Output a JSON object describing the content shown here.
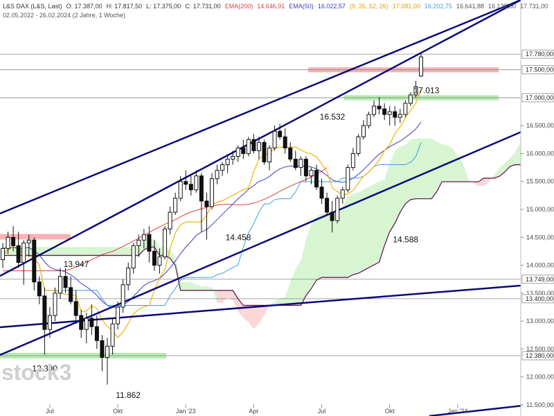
{
  "header": {
    "line1": [
      {
        "text": "L&S DAX (L&S, Last)",
        "color": "#333333"
      },
      {
        "text": "O: 17.387,00",
        "color": "#333333"
      },
      {
        "text": "H: 17.817,50",
        "color": "#333333"
      },
      {
        "text": "L: 17.375,00",
        "color": "#333333"
      },
      {
        "text": "C: 17.731,00",
        "color": "#333333"
      },
      {
        "text": "EMA(200)",
        "color": "#e04040"
      },
      {
        "text": "14.646,91",
        "color": "#e04040"
      },
      {
        "text": "EMA(50)",
        "color": "#3a3ad0"
      },
      {
        "text": "16.022,57",
        "color": "#3a3ad0"
      },
      {
        "text": "(9, 26, 52, 26)",
        "color": "#e0a000"
      },
      {
        "text": "17.081,00",
        "color": "#e0a000"
      },
      {
        "text": "16.202,75",
        "color": "#3aa0e0"
      },
      {
        "text": "16.641,88",
        "color": "#555555"
      },
      {
        "text": "16.138,50",
        "color": "#555555"
      },
      {
        "text": "17.731,00",
        "color": "#555555"
      }
    ],
    "line2": "02.05.2022 - 26.02.2024  (2 Jahre, 1 Woche)"
  },
  "watermark": "stock3",
  "colors": {
    "candle": "#111111",
    "ema200": "#e04040",
    "ema50": "#3a3ad0",
    "tenkan": "#f0b400",
    "kijun": "#3aa0e0",
    "senkou_b": "#6a1a5a",
    "cloud_green": "#d6f5d0",
    "cloud_red": "#fbd7d7",
    "trend": "#0a0a7a",
    "zone_green": "#b4ecb0",
    "zone_red": "#f5b4b4",
    "hline": "#888888"
  },
  "chart_data": {
    "type": "candlestick",
    "period": "02.05.2022 - 26.02.2024",
    "interval": "1 week",
    "y_axis": {
      "range": [
        11300,
        18750
      ],
      "ticks": [
        11500,
        12000,
        12500,
        13000,
        13500,
        14000,
        14500,
        15000,
        15500,
        16000,
        16500,
        17000,
        17500
      ],
      "tick_labels": [
        "11.500,00",
        "12.000,00",
        "12.500,00",
        "13.000,00",
        "13.500,00",
        "14.000,00",
        "14.500,00",
        "15.000,00",
        "15.500,00",
        "16.000,00",
        "16.500,00",
        "17.000,00",
        "17.500,00"
      ],
      "highlighted": [
        {
          "value": 17780,
          "label": "17.780,00"
        },
        {
          "value": 17500,
          "label": "17.500,00"
        },
        {
          "value": 17000,
          "label": "17.000,00"
        },
        {
          "value": 13749,
          "label": "13.749,00"
        },
        {
          "value": 13400,
          "label": "13.400,00"
        },
        {
          "value": 12380,
          "label": "12.380,00"
        }
      ]
    },
    "x_axis": {
      "labels": [
        {
          "week": 9,
          "label": "Jul"
        },
        {
          "week": 22,
          "label": "Okt"
        },
        {
          "week": 35,
          "label": "Jan '23"
        },
        {
          "week": 48,
          "label": "Apr"
        },
        {
          "week": 61,
          "label": "Jul"
        },
        {
          "week": 74,
          "label": "Okt"
        },
        {
          "week": 87,
          "label": "Jan '24"
        }
      ]
    },
    "candles": {
      "fields": [
        "o",
        "h",
        "l",
        "c"
      ],
      "values": [
        [
          14100,
          14400,
          13950,
          14300
        ],
        [
          14300,
          14600,
          14200,
          14500
        ],
        [
          14500,
          14700,
          14250,
          14350
        ],
        [
          14350,
          14600,
          13950,
          14050
        ],
        [
          14050,
          14450,
          13650,
          14400
        ],
        [
          14400,
          14550,
          14150,
          14450
        ],
        [
          14450,
          14500,
          13550,
          13700
        ],
        [
          13700,
          13800,
          13300,
          13450
        ],
        [
          13450,
          13600,
          12400,
          12850
        ],
        [
          12850,
          13250,
          12700,
          13100
        ],
        [
          13100,
          13600,
          13000,
          13500
        ],
        [
          13500,
          13950,
          13400,
          13800
        ],
        [
          13800,
          13950,
          13500,
          13600
        ],
        [
          13600,
          13800,
          13300,
          13350
        ],
        [
          13350,
          13550,
          12950,
          13100
        ],
        [
          13100,
          13200,
          12700,
          12850
        ],
        [
          12850,
          13150,
          12600,
          13050
        ],
        [
          13050,
          13300,
          12750,
          12900
        ],
        [
          12900,
          13100,
          12500,
          12650
        ],
        [
          12650,
          12750,
          12100,
          12350
        ],
        [
          12350,
          12700,
          11862,
          12550
        ],
        [
          12550,
          13050,
          12400,
          12950
        ],
        [
          12950,
          13350,
          12850,
          13250
        ],
        [
          13250,
          13750,
          13150,
          13650
        ],
        [
          13650,
          14050,
          13550,
          13950
        ],
        [
          13950,
          14400,
          13850,
          14350
        ],
        [
          14350,
          14550,
          14150,
          14450
        ],
        [
          14450,
          14650,
          14300,
          14550
        ],
        [
          14550,
          14700,
          14050,
          14250
        ],
        [
          14250,
          14450,
          13900,
          14000
        ],
        [
          14000,
          14300,
          13850,
          14150
        ],
        [
          14150,
          14700,
          14100,
          14650
        ],
        [
          14650,
          15050,
          14550,
          14950
        ],
        [
          14950,
          15300,
          14900,
          15200
        ],
        [
          15200,
          15600,
          15150,
          15500
        ],
        [
          15500,
          15700,
          15350,
          15450
        ],
        [
          15450,
          15600,
          15250,
          15350
        ],
        [
          15350,
          15700,
          15300,
          15600
        ],
        [
          15600,
          15650,
          14600,
          15150
        ],
        [
          15150,
          15300,
          14458,
          15050
        ],
        [
          15050,
          15650,
          15000,
          15550
        ],
        [
          15550,
          15800,
          15450,
          15700
        ],
        [
          15700,
          15850,
          15600,
          15800
        ],
        [
          15800,
          15950,
          15650,
          15900
        ],
        [
          15900,
          16050,
          15800,
          15950
        ],
        [
          15950,
          16150,
          15850,
          16100
        ],
        [
          16100,
          16250,
          15900,
          16000
        ],
        [
          16000,
          16300,
          15950,
          16250
        ],
        [
          16250,
          16350,
          16000,
          16050
        ],
        [
          16050,
          16300,
          15900,
          16200
        ],
        [
          16200,
          16250,
          15800,
          15850
        ],
        [
          15850,
          16150,
          15700,
          16100
        ],
        [
          16100,
          16500,
          16050,
          16400
        ],
        [
          16400,
          16532,
          16250,
          16300
        ],
        [
          16300,
          16450,
          16000,
          16100
        ],
        [
          16100,
          16200,
          15850,
          15900
        ],
        [
          15900,
          16050,
          15700,
          15750
        ],
        [
          15750,
          15950,
          15600,
          15900
        ],
        [
          15900,
          15950,
          15500,
          15600
        ],
        [
          15600,
          15750,
          15450,
          15700
        ],
        [
          15700,
          15800,
          15350,
          15400
        ],
        [
          15400,
          15550,
          15100,
          15200
        ],
        [
          15200,
          15300,
          14900,
          14950
        ],
        [
          14950,
          15150,
          14588,
          14800
        ],
        [
          14800,
          15250,
          14750,
          15200
        ],
        [
          15200,
          15400,
          15100,
          15350
        ],
        [
          15350,
          15800,
          15300,
          15750
        ],
        [
          15750,
          16100,
          15700,
          16000
        ],
        [
          16000,
          16350,
          15950,
          16300
        ],
        [
          16300,
          16600,
          16250,
          16500
        ],
        [
          16500,
          16750,
          16450,
          16700
        ],
        [
          16700,
          16950,
          16650,
          16850
        ],
        [
          16850,
          17013,
          16700,
          16800
        ],
        [
          16800,
          16900,
          16600,
          16700
        ],
        [
          16700,
          16850,
          16500,
          16750
        ],
        [
          16750,
          16850,
          16500,
          16650
        ],
        [
          16650,
          16800,
          16550,
          16700
        ],
        [
          16700,
          16950,
          16650,
          16900
        ],
        [
          16900,
          17100,
          16850,
          17050
        ],
        [
          17050,
          17300,
          17000,
          17200
        ],
        [
          17387,
          17817,
          17375,
          17731
        ]
      ]
    },
    "annotations": [
      {
        "label": "12.390",
        "week": 8,
        "value": 12100
      },
      {
        "label": "13.947",
        "week": 14,
        "value": 13970
      },
      {
        "label": "11.862",
        "week": 24,
        "value": 11620
      },
      {
        "label": "14.458",
        "week": 45,
        "value": 14450
      },
      {
        "label": "16.532",
        "week": 63,
        "value": 16610
      },
      {
        "label": "14.588",
        "week": 77,
        "value": 14410
      },
      {
        "label": "17.013",
        "week": 81,
        "value": 17080
      }
    ]
  }
}
